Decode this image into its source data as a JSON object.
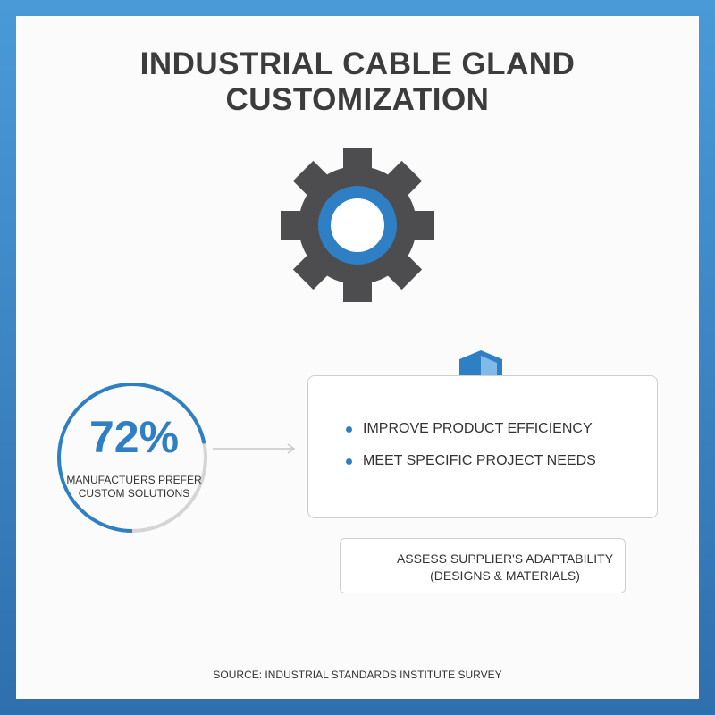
{
  "header": {
    "title": "INDUSTRIAL CABLE GLAND CUSTOMIZATION"
  },
  "stat": {
    "value": 72,
    "label": "72%",
    "caption": "MANUFACTUERS PREFER CUSTOM SOLUTIONS"
  },
  "benefits": [
    "IMPROVE PRODUCT EFFICIENCY",
    "MEET SPECIFIC PROJECT NEEDS"
  ],
  "action": "ASSESS SUPPLIER'S ADAPTABILITY (DESIGNS & MATERIALS)",
  "footer": {
    "source": "SOURCE: INDUSTRIAL STANDARDS INSTITUTE SURVEY"
  }
}
